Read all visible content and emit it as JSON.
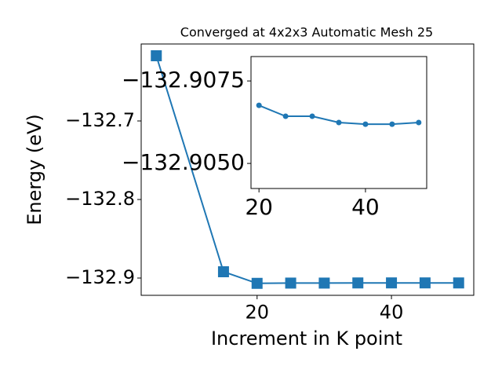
{
  "chart_data": [
    {
      "type": "line",
      "title": "Converged at 4x2x3 Automatic Mesh 25",
      "xlabel": "Increment in K point",
      "ylabel": "Energy (eV)",
      "x": [
        5,
        15,
        20,
        25,
        30,
        35,
        40,
        45,
        50
      ],
      "series": [
        {
          "color": "#1f77b4",
          "marker": "square",
          "values": [
            -132.617,
            -132.892,
            -132.90676,
            -132.90643,
            -132.90643,
            -132.90624,
            -132.90619,
            -132.90619,
            -132.90624
          ]
        }
      ],
      "xlim": [
        2.75,
        52.25
      ],
      "ylim": [
        -132.922,
        -132.602
      ],
      "xticks": [
        20,
        40
      ],
      "yticks": [
        {
          "value": -132.9,
          "label": "−132.9"
        },
        {
          "value": -132.8,
          "label": "−132.8"
        },
        {
          "value": -132.7,
          "label": "−132.7"
        }
      ]
    },
    {
      "type": "line",
      "x": [
        20,
        25,
        30,
        35,
        40,
        45,
        50
      ],
      "series": [
        {
          "color": "#1f77b4",
          "marker": "circle",
          "values": [
            -132.90676,
            -132.90643,
            -132.90643,
            -132.90624,
            -132.90619,
            -132.90619,
            -132.90624
          ]
        }
      ],
      "xlim": [
        18.5,
        51.5
      ],
      "ylim": [
        -132.90424,
        -132.90824
      ],
      "xticks": [
        20,
        40
      ],
      "yticks": [
        {
          "value": -132.905,
          "label": "−132.9050"
        },
        {
          "value": -132.9075,
          "label": "−132.9075"
        }
      ]
    }
  ]
}
